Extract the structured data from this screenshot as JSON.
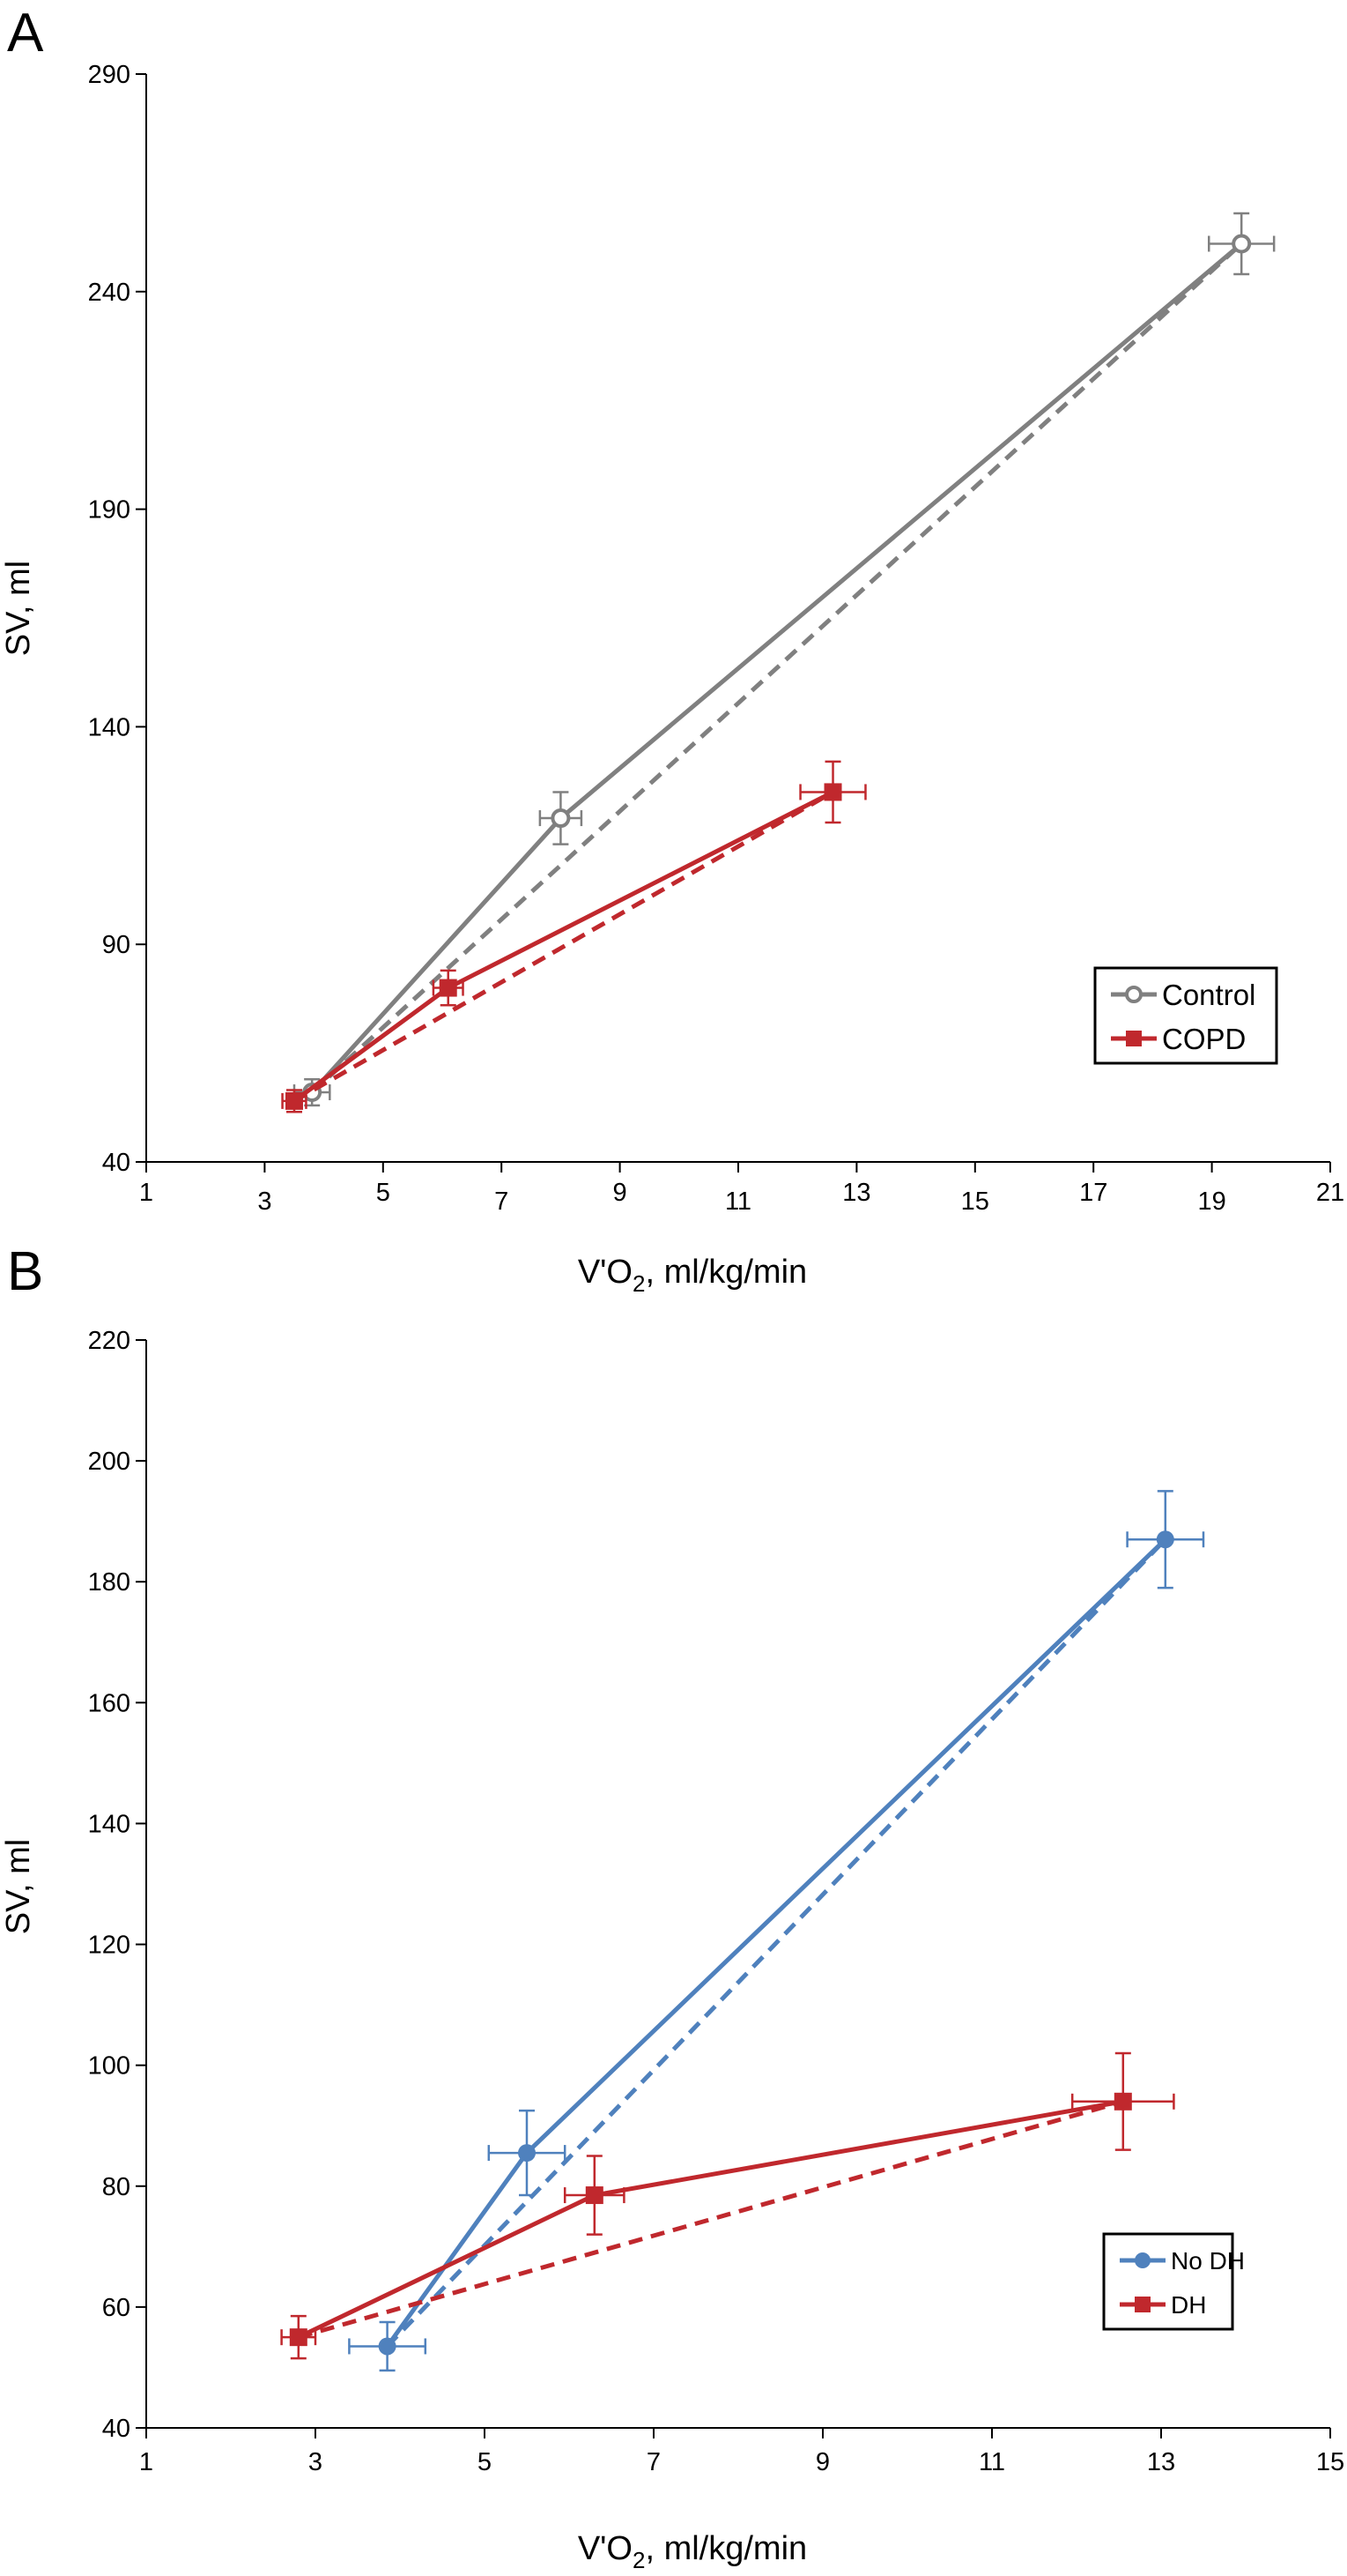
{
  "figure": {
    "panels": [
      "A",
      "B"
    ]
  },
  "chart_data": [
    {
      "type": "line",
      "panel": "A",
      "xlabel": "V'O2, ml/kg/min",
      "ylabel": "SV, ml",
      "xlim": [
        1,
        21
      ],
      "ylim": [
        40,
        290
      ],
      "x_ticks": [
        1,
        3,
        5,
        7,
        9,
        11,
        13,
        15,
        17,
        19,
        21
      ],
      "y_ticks": [
        40,
        90,
        140,
        190,
        240,
        290
      ],
      "legend_position": "bottom-right",
      "grid": false,
      "series": [
        {
          "name": "Control",
          "color": "#808080",
          "marker": "open-circle",
          "points": [
            {
              "x": 3.8,
              "y": 56,
              "xerr": 0.3,
              "yerr": 3
            },
            {
              "x": 8.0,
              "y": 119,
              "xerr": 0.35,
              "yerr": 6
            },
            {
              "x": 19.5,
              "y": 251,
              "xerr": 0.55,
              "yerr": 7
            }
          ],
          "dashed_fit": [
            [
              3.8,
              56
            ],
            [
              19.5,
              251
            ]
          ]
        },
        {
          "name": "COPD",
          "color": "#C0282D",
          "marker": "square",
          "points": [
            {
              "x": 3.5,
              "y": 54,
              "xerr": 0.2,
              "yerr": 2.5
            },
            {
              "x": 6.1,
              "y": 80,
              "xerr": 0.25,
              "yerr": 4
            },
            {
              "x": 12.6,
              "y": 125,
              "xerr": 0.55,
              "yerr": 7
            }
          ],
          "dashed_fit": [
            [
              3.5,
              54
            ],
            [
              12.6,
              125
            ]
          ]
        }
      ]
    },
    {
      "type": "line",
      "panel": "B",
      "xlabel": "V'O2, ml/kg/min",
      "ylabel": "SV, ml",
      "xlim": [
        1,
        15
      ],
      "ylim": [
        40,
        220
      ],
      "x_ticks": [
        1,
        3,
        5,
        7,
        9,
        11,
        13,
        15
      ],
      "y_ticks": [
        40,
        60,
        80,
        100,
        120,
        140,
        160,
        180,
        200,
        220
      ],
      "legend_position": "bottom-right",
      "grid": false,
      "series": [
        {
          "name": "No DH",
          "color": "#4F81BD",
          "marker": "circle",
          "points": [
            {
              "x": 3.85,
              "y": 53.5,
              "xerr": 0.45,
              "yerr": 4
            },
            {
              "x": 5.5,
              "y": 85.5,
              "xerr": 0.45,
              "yerr": 7
            },
            {
              "x": 13.05,
              "y": 187,
              "xerr": 0.45,
              "yerr": 8
            }
          ],
          "dashed_fit": [
            [
              3.85,
              53.5
            ],
            [
              13.05,
              187
            ]
          ]
        },
        {
          "name": "DH",
          "color": "#C0282D",
          "marker": "square",
          "points": [
            {
              "x": 2.8,
              "y": 55,
              "xerr": 0.2,
              "yerr": 3.5
            },
            {
              "x": 6.3,
              "y": 78.5,
              "xerr": 0.35,
              "yerr": 6.5
            },
            {
              "x": 12.55,
              "y": 94,
              "xerr": 0.6,
              "yerr": 8
            }
          ],
          "dashed_fit": [
            [
              2.8,
              55
            ],
            [
              12.55,
              94
            ]
          ]
        }
      ]
    }
  ]
}
